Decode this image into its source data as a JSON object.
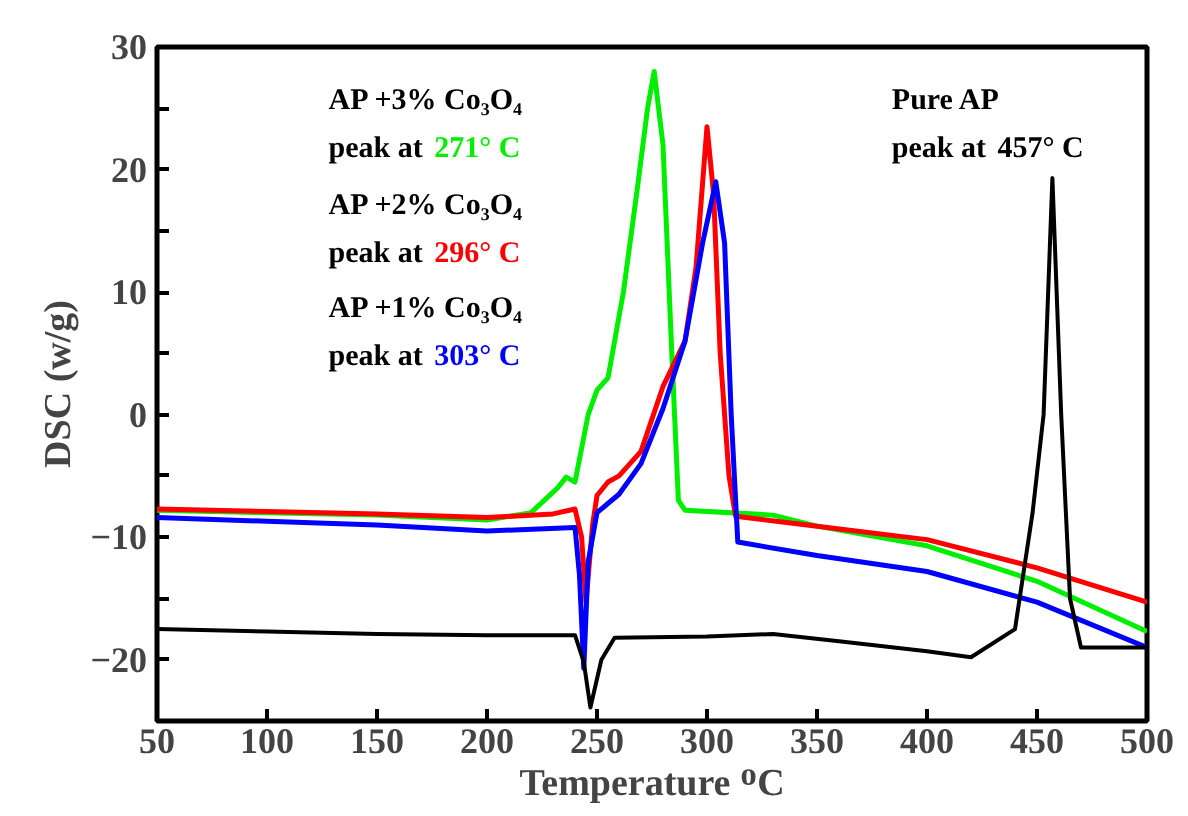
{
  "chart_data": {
    "type": "line",
    "xlabel": "Temperature ᴼC",
    "ylabel": "DSC (w/g)",
    "xlim": [
      50,
      500
    ],
    "ylim": [
      -25,
      30
    ],
    "xticks": [
      50,
      100,
      150,
      200,
      250,
      300,
      350,
      400,
      450,
      500
    ],
    "yticks": [
      -20,
      {
        "value": -15,
        "label": null
      },
      -10,
      {
        "value": -5,
        "label": null
      },
      0,
      {
        "value": 5,
        "label": null
      },
      10,
      {
        "value": 15,
        "label": null
      },
      20,
      {
        "value": 25,
        "label": null
      },
      30
    ],
    "grid": false,
    "marker": "none",
    "line_style": "solid",
    "series": [
      {
        "color": "#00ee00",
        "x": [
          50,
          100,
          150,
          200,
          220,
          232,
          236,
          240,
          246,
          250,
          255,
          262,
          268,
          273,
          276,
          280,
          284,
          287,
          290,
          330,
          350,
          400,
          450,
          500
        ],
        "values": [
          -7.8,
          -8,
          -8.2,
          -8.6,
          -8,
          -6,
          -5.1,
          -5.5,
          0,
          2,
          3,
          10,
          18,
          25,
          28,
          22,
          5,
          -7,
          -7.8,
          -8.2,
          -9.1,
          -10.7,
          -13.6,
          -17.7
        ]
      },
      {
        "color": "#ff0000",
        "x": [
          50,
          100,
          150,
          200,
          230,
          240,
          243,
          245,
          248,
          250,
          255,
          260,
          270,
          280,
          290,
          295,
          300,
          303,
          306,
          310,
          313,
          350,
          400,
          450,
          500
        ],
        "values": [
          -7.7,
          -7.9,
          -8.1,
          -8.4,
          -8.1,
          -7.7,
          -10,
          -15.3,
          -9,
          -6.6,
          -5.5,
          -5,
          -3,
          2.3,
          6,
          12,
          23.5,
          18,
          5,
          -5,
          -8.3,
          -9.1,
          -10.2,
          -12.5,
          -15.3
        ]
      },
      {
        "color": "#0000ff",
        "x": [
          50,
          100,
          150,
          200,
          240,
          242,
          244,
          246,
          250,
          260,
          270,
          280,
          290,
          298,
          304,
          308,
          311,
          314,
          350,
          400,
          450,
          500
        ],
        "values": [
          -8.4,
          -8.7,
          -9,
          -9.5,
          -9.2,
          -13,
          -20.7,
          -12,
          -8,
          -6.5,
          -4,
          0.5,
          6,
          14,
          19,
          14,
          0,
          -10.4,
          -11.5,
          -12.8,
          -15.3,
          -19
        ]
      },
      {
        "color": "#000000",
        "x": [
          50,
          100,
          150,
          200,
          240,
          244,
          247,
          252,
          258,
          300,
          330,
          360,
          400,
          420,
          440,
          448,
          453,
          457,
          461,
          465,
          470,
          500
        ],
        "values": [
          -17.5,
          -17.7,
          -17.9,
          -18,
          -18,
          -20.2,
          -23.9,
          -20,
          -18.2,
          -18.1,
          -17.9,
          -18.5,
          -19.3,
          -19.8,
          -17.5,
          -8,
          0,
          19.3,
          0,
          -15,
          -19,
          -19
        ]
      }
    ],
    "annotations": [
      "AP +3% Co₃O₄\npeak at 271° C",
      "AP +2% Co₃O₄\npeak at 296° C",
      "AP +1% Co₃O₄\npeak at 303° C",
      "Pure AP\npeak at 457° C"
    ]
  }
}
